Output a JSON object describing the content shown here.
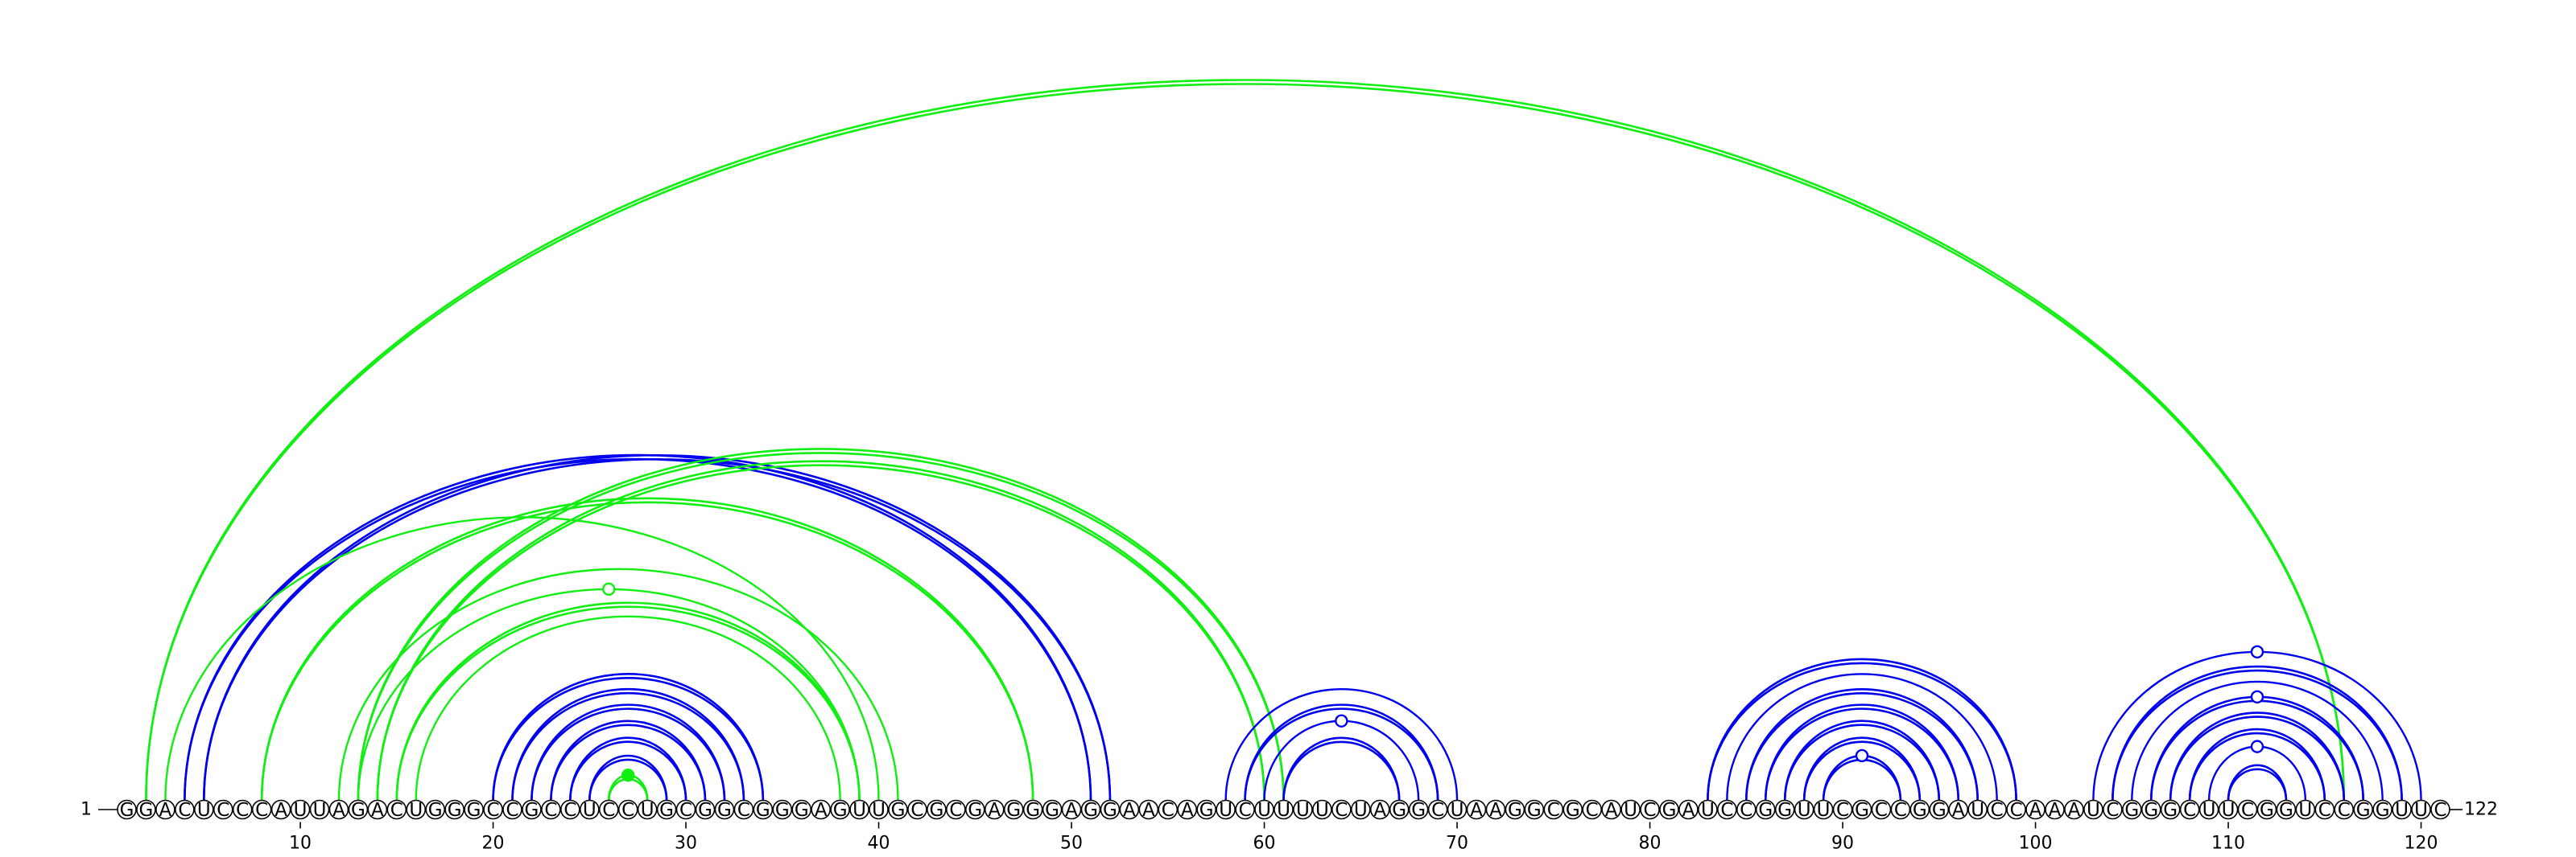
{
  "sequence": "GGACUCCCAUUAGACUGGGCCGCCUCCUGCGGCGGGAGUUGCGCGAGGGAGGAACAGUCUUUUCUAGGCUAAGGCGCAUCGAUCCGGUUCGCCGGAUCCAAAUCGGGCUUCGGUCCGGUUC",
  "start_label": "1",
  "end_label": "122",
  "axis_ticks": [
    "10",
    "20",
    "30",
    "40",
    "50",
    "60",
    "70",
    "80",
    "90",
    "100",
    "110",
    "120"
  ],
  "colors": {
    "blue": "#0000ee",
    "green": "#11ee11"
  },
  "arcs": [
    {
      "i": 2,
      "j": 116,
      "color": "green",
      "style": "double"
    },
    {
      "i": 4,
      "j": 51,
      "color": "blue",
      "style": "double"
    },
    {
      "i": 5,
      "j": 52,
      "color": "blue",
      "style": "double"
    },
    {
      "i": 3,
      "j": 40,
      "color": "green",
      "style": "single"
    },
    {
      "i": 8,
      "j": 48,
      "color": "green",
      "style": "double"
    },
    {
      "i": 13,
      "j": 61,
      "color": "green",
      "style": "double"
    },
    {
      "i": 14,
      "j": 60,
      "color": "green",
      "style": "double"
    },
    {
      "i": 13,
      "j": 39,
      "color": "green",
      "style": "single"
    },
    {
      "i": 12,
      "j": 41,
      "color": "green",
      "style": "single"
    },
    {
      "i": 15,
      "j": 39,
      "color": "green",
      "style": "double"
    },
    {
      "i": 16,
      "j": 38,
      "color": "green",
      "style": "single"
    },
    {
      "i": 20,
      "j": 34,
      "color": "blue",
      "style": "double"
    },
    {
      "i": 21,
      "j": 33,
      "color": "blue",
      "style": "double"
    },
    {
      "i": 22,
      "j": 32,
      "color": "blue",
      "style": "double"
    },
    {
      "i": 23,
      "j": 31,
      "color": "blue",
      "style": "double"
    },
    {
      "i": 24,
      "j": 30,
      "color": "blue",
      "style": "double"
    },
    {
      "i": 25,
      "j": 29,
      "color": "blue",
      "style": "double"
    },
    {
      "i": 26,
      "j": 28,
      "color": "green",
      "style": "double"
    },
    {
      "i": 58,
      "j": 70,
      "color": "blue",
      "style": "single"
    },
    {
      "i": 59,
      "j": 69,
      "color": "blue",
      "style": "double"
    },
    {
      "i": 60,
      "j": 68,
      "color": "blue",
      "style": "single"
    },
    {
      "i": 61,
      "j": 67,
      "color": "blue",
      "style": "double"
    },
    {
      "i": 83,
      "j": 99,
      "color": "blue",
      "style": "double"
    },
    {
      "i": 84,
      "j": 98,
      "color": "blue",
      "style": "single"
    },
    {
      "i": 85,
      "j": 97,
      "color": "blue",
      "style": "double"
    },
    {
      "i": 86,
      "j": 96,
      "color": "blue",
      "style": "double"
    },
    {
      "i": 87,
      "j": 95,
      "color": "blue",
      "style": "double"
    },
    {
      "i": 88,
      "j": 94,
      "color": "blue",
      "style": "double"
    },
    {
      "i": 89,
      "j": 93,
      "color": "blue",
      "style": "double"
    },
    {
      "i": 103,
      "j": 120,
      "color": "blue",
      "style": "single"
    },
    {
      "i": 104,
      "j": 119,
      "color": "blue",
      "style": "double"
    },
    {
      "i": 105,
      "j": 118,
      "color": "blue",
      "style": "single"
    },
    {
      "i": 106,
      "j": 117,
      "color": "blue",
      "style": "double"
    },
    {
      "i": 107,
      "j": 116,
      "color": "blue",
      "style": "double"
    },
    {
      "i": 108,
      "j": 115,
      "color": "blue",
      "style": "double"
    },
    {
      "i": 109,
      "j": 114,
      "color": "blue",
      "style": "single"
    },
    {
      "i": 110,
      "j": 113,
      "color": "blue",
      "style": "double"
    }
  ],
  "markers": [
    {
      "i": 13,
      "j": 39,
      "color": "green",
      "filled": false
    },
    {
      "i": 26,
      "j": 28,
      "color": "green",
      "filled": true
    },
    {
      "i": 60,
      "j": 68,
      "color": "blue",
      "filled": false
    },
    {
      "i": 89,
      "j": 93,
      "color": "blue",
      "filled": false
    },
    {
      "i": 103,
      "j": 120,
      "color": "blue",
      "filled": false
    },
    {
      "i": 106,
      "j": 117,
      "color": "blue",
      "filled": false
    },
    {
      "i": 109,
      "j": 114,
      "color": "blue",
      "filled": false
    }
  ]
}
